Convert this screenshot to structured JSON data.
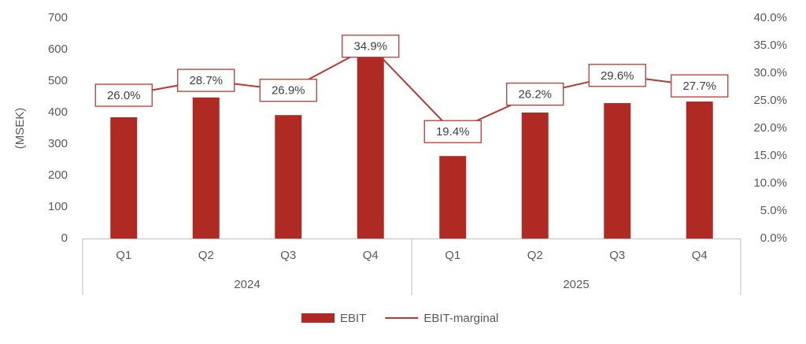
{
  "chart_data": {
    "type": "bar-line",
    "y_label": "(MSEK)",
    "categories": [
      "Q1",
      "Q2",
      "Q3",
      "Q4",
      "Q1",
      "Q2",
      "Q3",
      "Q4"
    ],
    "groups": [
      "2024",
      "2025"
    ],
    "series": [
      {
        "name": "EBIT",
        "type": "bar",
        "color": "#b02a24",
        "values": [
          385,
          448,
          392,
          575,
          262,
          400,
          430,
          435
        ]
      },
      {
        "name": "EBIT-marginal",
        "type": "line",
        "axis": "y2",
        "color": "#b83a33",
        "values": [
          26.0,
          28.7,
          26.9,
          34.9,
          19.4,
          26.2,
          29.6,
          27.7
        ],
        "value_labels": [
          "26.0%",
          "28.7%",
          "26.9%",
          "34.9%",
          "19.4%",
          "26.2%",
          "29.6%",
          "27.7%"
        ]
      }
    ],
    "ylim": [
      0,
      700
    ],
    "yticks": [
      0,
      100,
      200,
      300,
      400,
      500,
      600,
      700
    ],
    "y2lim": [
      0,
      40
    ],
    "y2ticks": [
      {
        "value": 0,
        "label": "0.0%"
      },
      {
        "value": 5,
        "label": "5.0%"
      },
      {
        "value": 10,
        "label": "10.0%"
      },
      {
        "value": 15,
        "label": "15.0%"
      },
      {
        "value": 20,
        "label": "20.0%"
      },
      {
        "value": 25,
        "label": "25.0%"
      },
      {
        "value": 30,
        "label": "30.0%"
      },
      {
        "value": 35,
        "label": "35.0%"
      },
      {
        "value": 40,
        "label": "40.0%"
      }
    ],
    "legend": "bottom"
  }
}
